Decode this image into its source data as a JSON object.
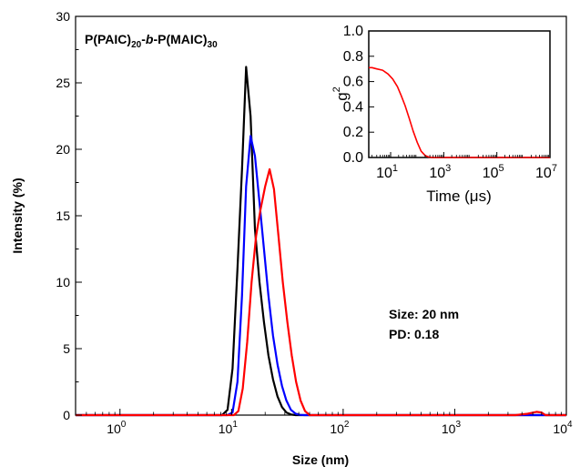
{
  "chart_data": [
    {
      "type": "line",
      "title": "",
      "annotation_title": {
        "main": "P(PAIC)",
        "sub1": "20",
        "mid": "-",
        "italic": "b",
        "mid2": "-P(MAIC)",
        "sub2": "30"
      },
      "xlabel": "Size (nm)",
      "ylabel": "Intensity (%)",
      "xscale": "log",
      "xlim": [
        0.4,
        10000
      ],
      "ylim": [
        0,
        30
      ],
      "xticks": [
        1,
        10,
        100,
        1000,
        10000
      ],
      "xtick_labels": [
        {
          "base": "10",
          "exp": "0"
        },
        {
          "base": "10",
          "exp": "1"
        },
        {
          "base": "10",
          "exp": "2"
        },
        {
          "base": "10",
          "exp": "3"
        },
        {
          "base": "10",
          "exp": "4"
        }
      ],
      "yticks": [
        0,
        5,
        10,
        15,
        20,
        25,
        30
      ],
      "ytick_labels": [
        "0",
        "5",
        "10",
        "15",
        "20",
        "25",
        "30"
      ],
      "annotations": [
        "Size: 20 nm",
        "PD: 0.18"
      ],
      "grid": false,
      "series": [
        {
          "color": "#000000",
          "x": [
            0.4,
            8.2,
            9.2,
            10.2,
            11.3,
            12.4,
            13.5,
            14.8,
            16.2,
            17.8,
            19.5,
            21.4,
            23.5,
            25.8,
            28.3,
            31.0,
            34.0,
            37.5,
            10000
          ],
          "y": [
            0,
            0,
            0.4,
            3.5,
            11,
            18.5,
            26.2,
            22.5,
            14,
            10,
            7,
            4.5,
            2.7,
            1.4,
            0.6,
            0.2,
            0.05,
            0,
            0
          ]
        },
        {
          "color": "#0000ff",
          "x": [
            0.4,
            9.2,
            10.2,
            11.3,
            12.4,
            13.5,
            14.8,
            16.2,
            17.8,
            19.5,
            21.4,
            23.5,
            25.8,
            28.3,
            31.0,
            34.0,
            37.5,
            41.0,
            45.0,
            10000
          ],
          "y": [
            0,
            0,
            0.2,
            2.5,
            9,
            17.2,
            21,
            19.5,
            16,
            12.5,
            9,
            6,
            3.8,
            2.2,
            1.1,
            0.4,
            0.1,
            0.02,
            0,
            0
          ]
        },
        {
          "color": "#ff0000",
          "x": [
            0.4,
            10.5,
            11.5,
            12.6,
            13.8,
            15.1,
            16.6,
            18.2,
            20.0,
            21.9,
            24.0,
            26.3,
            28.8,
            31.6,
            34.6,
            37.9,
            41.5,
            45.5,
            50.0,
            3500,
            4500,
            5400,
            6000,
            6500,
            10000
          ],
          "y": [
            0,
            0,
            0.3,
            2,
            5.5,
            10,
            13.5,
            15.5,
            17.2,
            18.5,
            17,
            13.5,
            10,
            7,
            4.5,
            2.5,
            1.1,
            0.3,
            0,
            0,
            0.1,
            0.25,
            0.2,
            0,
            0
          ]
        }
      ]
    },
    {
      "type": "line",
      "title": "",
      "xlabel": "Time (μs)",
      "ylabel_base": "g",
      "ylabel_exp": "2",
      "xscale": "log",
      "xlim": [
        1.5,
        10000000
      ],
      "ylim": [
        0,
        1.0
      ],
      "xticks": [
        10,
        1000,
        100000,
        10000000
      ],
      "xtick_labels": [
        {
          "base": "10",
          "exp": "1"
        },
        {
          "base": "10",
          "exp": "3"
        },
        {
          "base": "10",
          "exp": "5"
        },
        {
          "base": "10",
          "exp": "7"
        }
      ],
      "yticks": [
        0,
        0.2,
        0.4,
        0.6,
        0.8,
        1.0
      ],
      "ytick_labels": [
        "0.0",
        "0.2",
        "0.4",
        "0.6",
        "0.8",
        "1.0"
      ],
      "grid": false,
      "series": [
        {
          "color": "#ff0000",
          "x": [
            1.5,
            2,
            3,
            5,
            8,
            12,
            18,
            25,
            35,
            50,
            70,
            100,
            140,
            200,
            280,
            400,
            600,
            1000,
            10000000
          ],
          "y": [
            0.71,
            0.71,
            0.7,
            0.69,
            0.66,
            0.62,
            0.56,
            0.49,
            0.41,
            0.31,
            0.21,
            0.12,
            0.05,
            0.015,
            0.003,
            0,
            0,
            0,
            0
          ]
        }
      ]
    }
  ]
}
